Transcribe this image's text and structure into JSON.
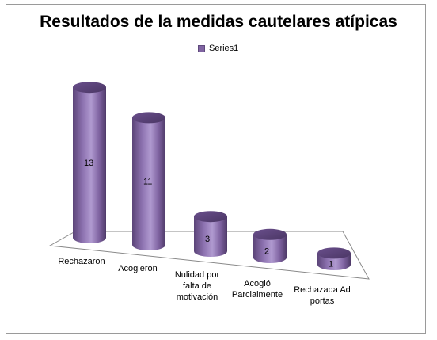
{
  "chart_data": {
    "type": "bar",
    "title": "Resultados de la medidas cautelares atípicas",
    "legend": {
      "placement": "top",
      "entries": [
        "Series1"
      ]
    },
    "categories": [
      [
        "Rechazaron"
      ],
      [
        "Acogieron"
      ],
      [
        "Nulidad por",
        "falta de",
        "motivación"
      ],
      [
        "Acogió",
        "Parcialmente"
      ],
      [
        "Rechazada Ad",
        "portas"
      ]
    ],
    "series": [
      {
        "name": "Series1",
        "values": [
          13,
          11,
          3,
          2,
          1
        ],
        "color": "#8064a2"
      }
    ],
    "ylim": [
      0,
      14
    ],
    "grid": false,
    "style": "3d-cylinder"
  }
}
